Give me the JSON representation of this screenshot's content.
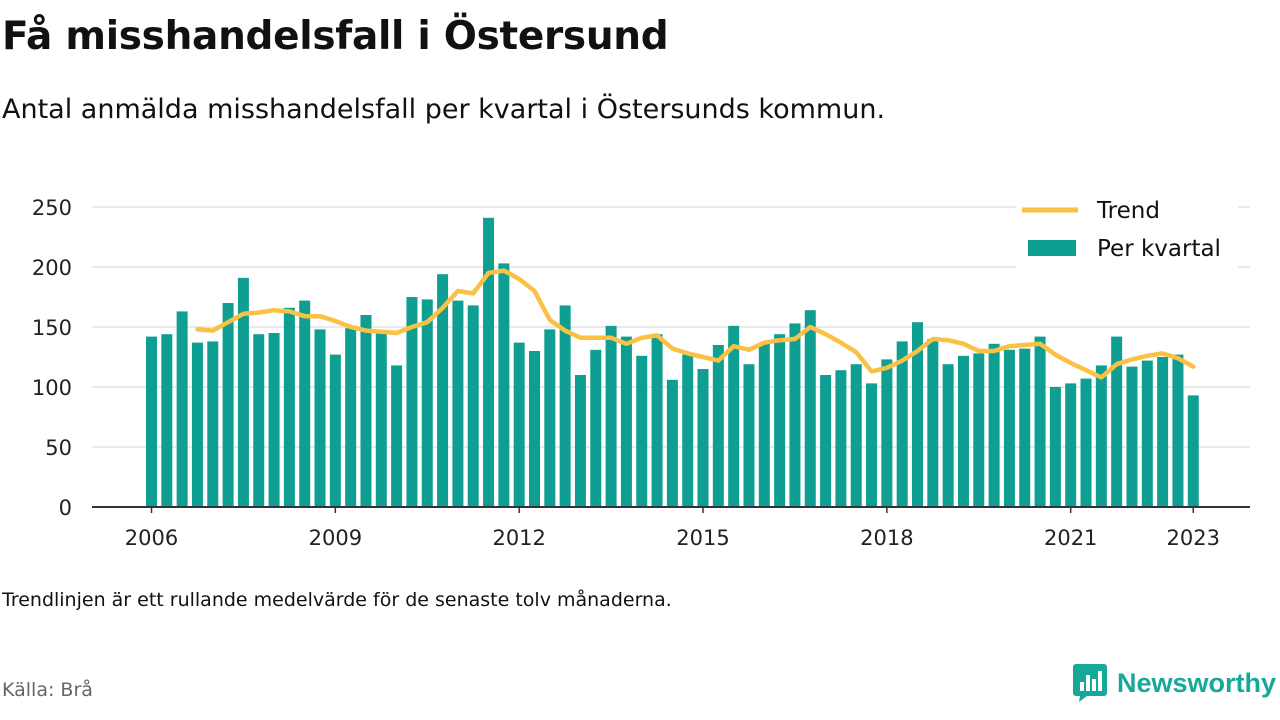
{
  "title": "Få misshandelsfall i Östersund",
  "subtitle": "Antal anmälda misshandelsfall per kvartal i Östersunds kommun.",
  "note": "Trendlinjen är ett rullande medelvärde för de senaste tolv månaderna.",
  "source": "Källa: Brå",
  "brand": {
    "name": "Newsworthy",
    "icon": "newsworthy-logo-icon"
  },
  "colors": {
    "bar": "#0e9e92",
    "trend": "#fbc144",
    "grid": "#dddddd",
    "axis": "#333333"
  },
  "chart_data": {
    "type": "bar",
    "x_start": "2006 Q1",
    "x_ticks": [
      "2006",
      "2009",
      "2012",
      "2015",
      "2018",
      "2021",
      "2023"
    ],
    "y_ticks": [
      0,
      50,
      100,
      150,
      200,
      250
    ],
    "ylim": [
      0,
      250
    ],
    "legend": {
      "position": "top-right",
      "entries": [
        "Trend",
        "Per kvartal"
      ]
    },
    "grid": true,
    "series": [
      {
        "name": "Per kvartal",
        "type": "bar",
        "values": [
          142,
          144,
          163,
          137,
          138,
          170,
          191,
          144,
          145,
          166,
          172,
          148,
          127,
          149,
          160,
          145,
          118,
          175,
          173,
          194,
          172,
          168,
          241,
          203,
          137,
          130,
          148,
          168,
          110,
          131,
          151,
          142,
          126,
          144,
          106,
          127,
          115,
          135,
          151,
          119,
          136,
          144,
          153,
          164,
          110,
          114,
          119,
          103,
          123,
          138,
          154,
          140,
          119,
          126,
          128,
          136,
          131,
          132,
          142,
          100,
          103,
          107,
          118,
          142,
          117,
          122,
          125,
          127,
          93
        ]
      },
      {
        "name": "Trend",
        "type": "line",
        "values": [
          null,
          null,
          null,
          148,
          147,
          154,
          161,
          162,
          164,
          163,
          159,
          159,
          155,
          150,
          147,
          146,
          145,
          150,
          154,
          166,
          180,
          178,
          195,
          197,
          190,
          180,
          156,
          147,
          141,
          141,
          141,
          136,
          141,
          143,
          132,
          128,
          125,
          122,
          134,
          131,
          137,
          139,
          140,
          150,
          144,
          137,
          129,
          113,
          116,
          122,
          130,
          140,
          139,
          136,
          130,
          130,
          134,
          135,
          136,
          127,
          120,
          114,
          108,
          119,
          123,
          126,
          128,
          124,
          117
        ]
      }
    ]
  }
}
